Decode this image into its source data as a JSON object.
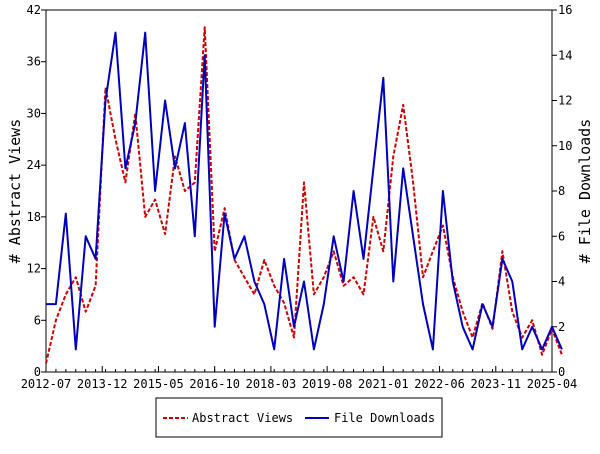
{
  "chart_data": {
    "type": "line",
    "title": "",
    "ylabel_left": "# Abstract Views",
    "ylabel_right": "# File Downloads",
    "ylim_left": [
      0,
      42
    ],
    "ylim_right": [
      0,
      16
    ],
    "yticks_left": [
      "0",
      "6",
      "12",
      "18",
      "24",
      "30",
      "36",
      "42"
    ],
    "yticks_right": [
      "0",
      "2",
      "4",
      "6",
      "8",
      "10",
      "12",
      "14",
      "16"
    ],
    "x_range": [
      "2012-07",
      "2025-04"
    ],
    "x_ticks": [
      "2012-07",
      "2013-12",
      "2015-05",
      "2016-10",
      "2018-03",
      "2019-08",
      "2021-01",
      "2022-06",
      "2023-11",
      "2025-04"
    ],
    "grid": false,
    "legend_position": "bottom-center",
    "colors": {
      "abstract_views": "#cc0000",
      "file_downloads": "#0000bb"
    },
    "series": [
      {
        "name": "Abstract Views",
        "axis": "left",
        "style": "dashed",
        "x": [
          "2012-07",
          "2012-10",
          "2013-01",
          "2013-04",
          "2013-07",
          "2013-10",
          "2014-01",
          "2014-04",
          "2014-07",
          "2014-10",
          "2015-01",
          "2015-04",
          "2015-07",
          "2015-10",
          "2016-01",
          "2016-04",
          "2016-07",
          "2016-10",
          "2017-01",
          "2017-04",
          "2017-07",
          "2017-10",
          "2018-01",
          "2018-04",
          "2018-07",
          "2018-10",
          "2019-01",
          "2019-04",
          "2019-07",
          "2019-10",
          "2020-01",
          "2020-04",
          "2020-07",
          "2020-10",
          "2021-01",
          "2021-04",
          "2021-07",
          "2021-10",
          "2022-01",
          "2022-04",
          "2022-07",
          "2022-10",
          "2023-01",
          "2023-04",
          "2023-07",
          "2023-10",
          "2024-01",
          "2024-04",
          "2024-07",
          "2024-10",
          "2025-01",
          "2025-04",
          "2025-07"
        ],
        "values": [
          1,
          6,
          9,
          11,
          7,
          10,
          33,
          27,
          22,
          30,
          18,
          20,
          16,
          25,
          21,
          22,
          40,
          14,
          19,
          13,
          11,
          9,
          13,
          10,
          8,
          4,
          22,
          9,
          11,
          14,
          10,
          11,
          9,
          18,
          14,
          25,
          31,
          22,
          11,
          14,
          17,
          11,
          7,
          4,
          8,
          5,
          14,
          7,
          4,
          6,
          2,
          5,
          2
        ]
      },
      {
        "name": "File Downloads",
        "axis": "right",
        "style": "solid",
        "x": [
          "2012-07",
          "2012-10",
          "2013-01",
          "2013-04",
          "2013-07",
          "2013-10",
          "2014-01",
          "2014-04",
          "2014-07",
          "2014-10",
          "2015-01",
          "2015-04",
          "2015-07",
          "2015-10",
          "2016-01",
          "2016-04",
          "2016-07",
          "2016-10",
          "2017-01",
          "2017-04",
          "2017-07",
          "2017-10",
          "2018-01",
          "2018-04",
          "2018-07",
          "2018-10",
          "2019-01",
          "2019-04",
          "2019-07",
          "2019-10",
          "2020-01",
          "2020-04",
          "2020-07",
          "2020-10",
          "2021-01",
          "2021-04",
          "2021-07",
          "2021-10",
          "2022-01",
          "2022-04",
          "2022-07",
          "2022-10",
          "2023-01",
          "2023-04",
          "2023-07",
          "2023-10",
          "2024-01",
          "2024-04",
          "2024-07",
          "2024-10",
          "2025-01",
          "2025-04",
          "2025-07"
        ],
        "values": [
          3,
          3,
          7,
          1,
          6,
          5,
          12,
          15,
          9,
          11,
          15,
          8,
          12,
          9,
          11,
          6,
          14,
          2,
          7,
          5,
          6,
          4,
          3,
          1,
          5,
          2,
          4,
          1,
          3,
          6,
          4,
          8,
          5,
          9,
          13,
          4,
          9,
          6,
          3,
          1,
          8,
          4,
          2,
          1,
          3,
          2,
          5,
          4,
          1,
          2,
          1,
          2,
          1
        ]
      }
    ]
  }
}
